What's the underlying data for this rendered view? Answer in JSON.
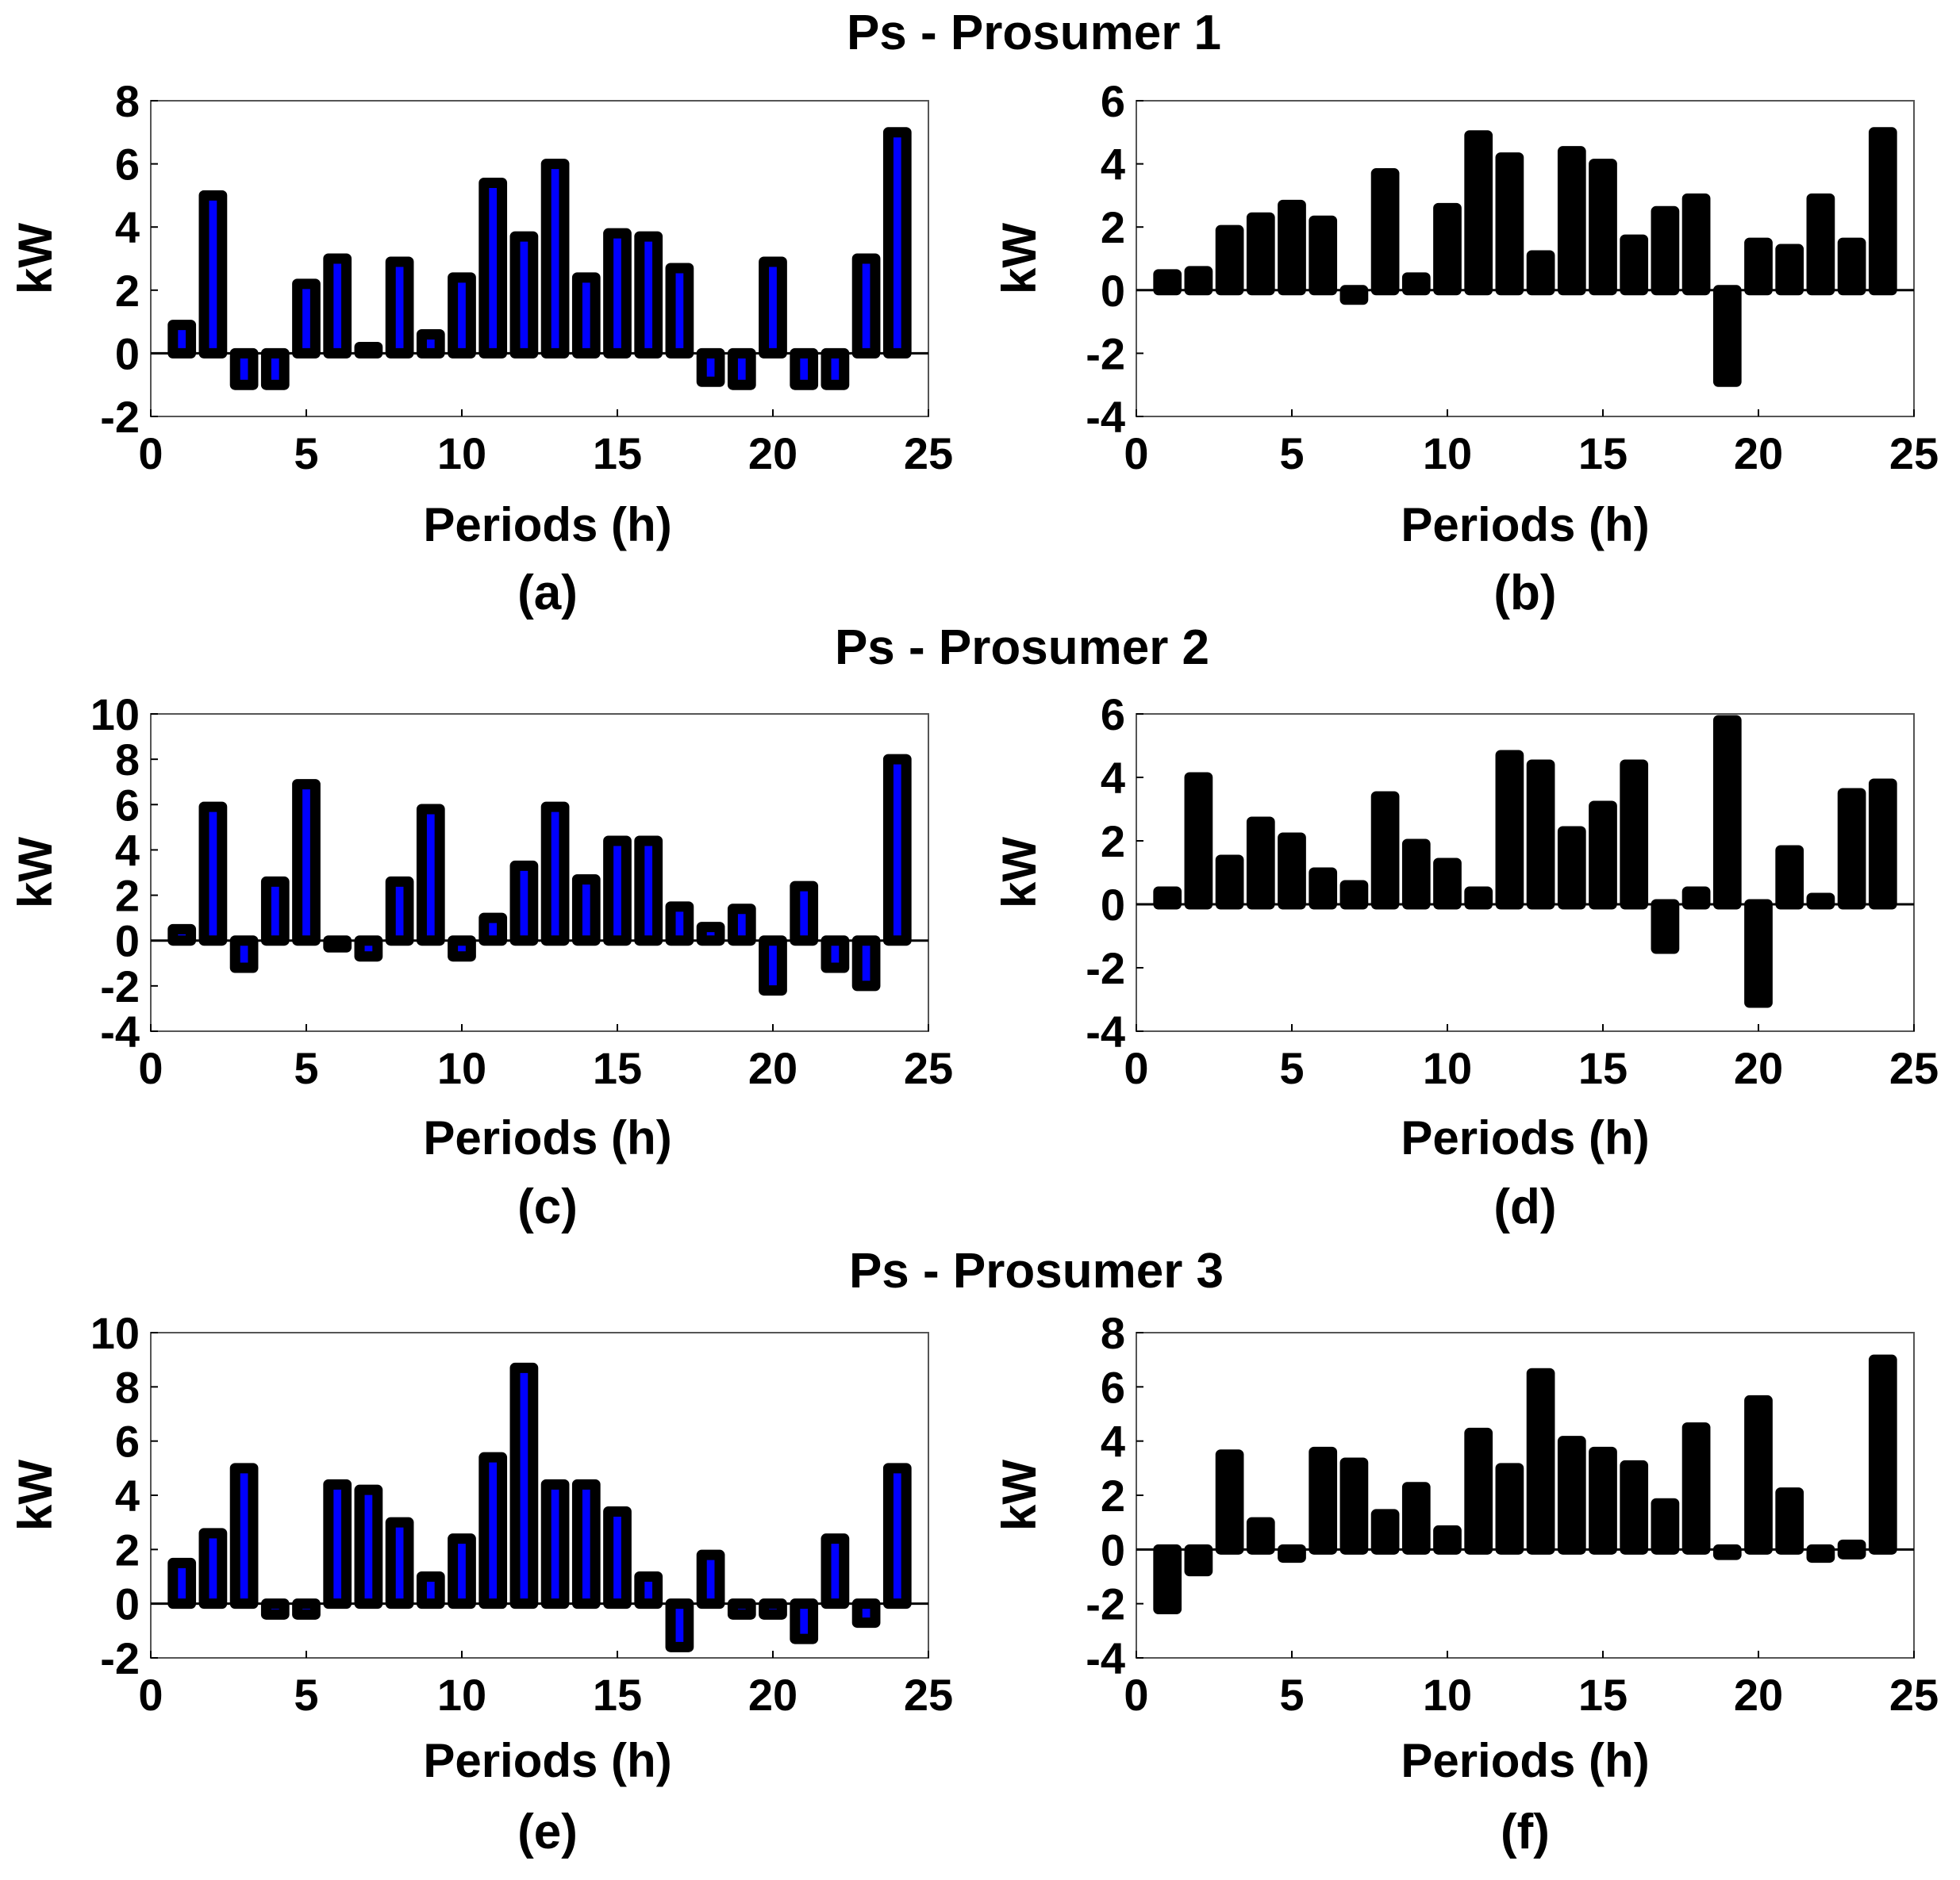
{
  "row_titles": [
    "Ps - Prosumer 1",
    "Ps - Prosumer 2",
    "Ps - Prosumer 3"
  ],
  "colors": {
    "blue": "#0000ff",
    "black": "#000000",
    "edge": "#000000"
  },
  "chart_data": [
    {
      "type": "bar",
      "panel": "(a)",
      "row_title": "Ps - Prosumer 1",
      "xlabel": "Periods (h)",
      "ylabel": "kW",
      "xlim": [
        0,
        25
      ],
      "ylim": [
        -2,
        8
      ],
      "xticks": [
        0,
        5,
        10,
        15,
        20,
        25
      ],
      "yticks": [
        -2,
        0,
        2,
        4,
        6,
        8
      ],
      "color": "#0000ff",
      "grid": false,
      "legend": "none",
      "x": [
        1,
        2,
        3,
        4,
        5,
        6,
        7,
        8,
        9,
        10,
        11,
        12,
        13,
        14,
        15,
        16,
        17,
        18,
        19,
        20,
        21,
        22,
        23,
        24
      ],
      "values": [
        0.9,
        5.0,
        -1.0,
        -1.0,
        2.2,
        3.0,
        0.2,
        2.9,
        0.6,
        2.4,
        5.4,
        3.7,
        6.0,
        2.4,
        3.8,
        3.7,
        2.7,
        -0.9,
        -1.0,
        2.9,
        -1.0,
        -1.0,
        3.0,
        7.0
      ]
    },
    {
      "type": "bar",
      "panel": "(b)",
      "row_title": "Ps - Prosumer 1",
      "xlabel": "Periods (h)",
      "ylabel": "kW",
      "xlim": [
        0,
        25
      ],
      "ylim": [
        -4,
        6
      ],
      "xticks": [
        0,
        5,
        10,
        15,
        20,
        25
      ],
      "yticks": [
        -4,
        -2,
        0,
        2,
        4,
        6
      ],
      "color": "#000000",
      "grid": false,
      "legend": "none",
      "x": [
        1,
        2,
        3,
        4,
        5,
        6,
        7,
        8,
        9,
        10,
        11,
        12,
        13,
        14,
        15,
        16,
        17,
        18,
        19,
        20,
        21,
        22,
        23,
        24
      ],
      "values": [
        0.5,
        0.6,
        1.9,
        2.3,
        2.7,
        2.2,
        -0.3,
        3.7,
        0.4,
        2.6,
        4.9,
        4.2,
        1.1,
        4.4,
        4.0,
        1.6,
        2.5,
        2.9,
        -2.9,
        1.5,
        1.3,
        2.9,
        1.5,
        5.0
      ]
    },
    {
      "type": "bar",
      "panel": "(c)",
      "row_title": "Ps - Prosumer 2",
      "xlabel": "Periods (h)",
      "ylabel": "kW",
      "xlim": [
        0,
        25
      ],
      "ylim": [
        -4,
        10
      ],
      "xticks": [
        0,
        5,
        10,
        15,
        20,
        25
      ],
      "yticks": [
        -4,
        -2,
        0,
        2,
        4,
        6,
        8,
        10
      ],
      "color": "#0000ff",
      "grid": false,
      "legend": "none",
      "x": [
        1,
        2,
        3,
        4,
        5,
        6,
        7,
        8,
        9,
        10,
        11,
        12,
        13,
        14,
        15,
        16,
        17,
        18,
        19,
        20,
        21,
        22,
        23,
        24
      ],
      "values": [
        0.5,
        5.9,
        -1.2,
        2.6,
        6.9,
        -0.3,
        -0.7,
        2.6,
        5.8,
        -0.7,
        1.0,
        3.3,
        5.9,
        2.7,
        4.4,
        4.4,
        1.5,
        0.6,
        1.4,
        -2.2,
        2.4,
        -1.2,
        -2.0,
        8.0
      ]
    },
    {
      "type": "bar",
      "panel": "(d)",
      "row_title": "Ps - Prosumer 2",
      "xlabel": "Periods (h)",
      "ylabel": "kW",
      "xlim": [
        0,
        25
      ],
      "ylim": [
        -4,
        6
      ],
      "xticks": [
        0,
        5,
        10,
        15,
        20,
        25
      ],
      "yticks": [
        -4,
        -2,
        0,
        2,
        4,
        6
      ],
      "color": "#000000",
      "grid": false,
      "legend": "none",
      "x": [
        1,
        2,
        3,
        4,
        5,
        6,
        7,
        8,
        9,
        10,
        11,
        12,
        13,
        14,
        15,
        16,
        17,
        18,
        19,
        20,
        21,
        22,
        23,
        24
      ],
      "values": [
        0.4,
        4.0,
        1.4,
        2.6,
        2.1,
        1.0,
        0.6,
        3.4,
        1.9,
        1.3,
        0.4,
        4.7,
        4.4,
        2.3,
        3.1,
        4.4,
        -1.4,
        0.4,
        5.8,
        -3.1,
        1.7,
        0.2,
        3.5,
        3.8
      ]
    },
    {
      "type": "bar",
      "panel": "(e)",
      "row_title": "Ps - Prosumer 3",
      "xlabel": "Periods (h)",
      "ylabel": "kW",
      "xlim": [
        0,
        25
      ],
      "ylim": [
        -2,
        10
      ],
      "xticks": [
        0,
        5,
        10,
        15,
        20,
        25
      ],
      "yticks": [
        -2,
        0,
        2,
        4,
        6,
        8,
        10
      ],
      "color": "#0000ff",
      "grid": false,
      "legend": "none",
      "x": [
        1,
        2,
        3,
        4,
        5,
        6,
        7,
        8,
        9,
        10,
        11,
        12,
        13,
        14,
        15,
        16,
        17,
        18,
        19,
        20,
        21,
        22,
        23,
        24
      ],
      "values": [
        1.5,
        2.6,
        5.0,
        -0.4,
        -0.4,
        4.4,
        4.2,
        3.0,
        1.0,
        2.4,
        5.4,
        8.7,
        4.4,
        4.4,
        3.4,
        1.0,
        -1.6,
        1.8,
        -0.4,
        -0.4,
        -1.3,
        2.4,
        -0.7,
        5.0
      ]
    },
    {
      "type": "bar",
      "panel": "(f)",
      "row_title": "Ps - Prosumer 3",
      "xlabel": "Periods (h)",
      "ylabel": "kW",
      "xlim": [
        0,
        25
      ],
      "ylim": [
        -4,
        8
      ],
      "xticks": [
        0,
        5,
        10,
        15,
        20,
        25
      ],
      "yticks": [
        -4,
        -2,
        0,
        2,
        4,
        6,
        8
      ],
      "color": "#000000",
      "grid": false,
      "legend": "none",
      "x": [
        1,
        2,
        3,
        4,
        5,
        6,
        7,
        8,
        9,
        10,
        11,
        12,
        13,
        14,
        15,
        16,
        17,
        18,
        19,
        20,
        21,
        22,
        23,
        24
      ],
      "values": [
        -2.2,
        -0.8,
        3.5,
        1.0,
        -0.3,
        3.6,
        3.2,
        1.3,
        2.3,
        0.7,
        4.3,
        3.0,
        6.5,
        4.0,
        3.6,
        3.1,
        1.7,
        4.5,
        -0.2,
        5.5,
        2.1,
        -0.3,
        0.1,
        7.0
      ]
    }
  ]
}
